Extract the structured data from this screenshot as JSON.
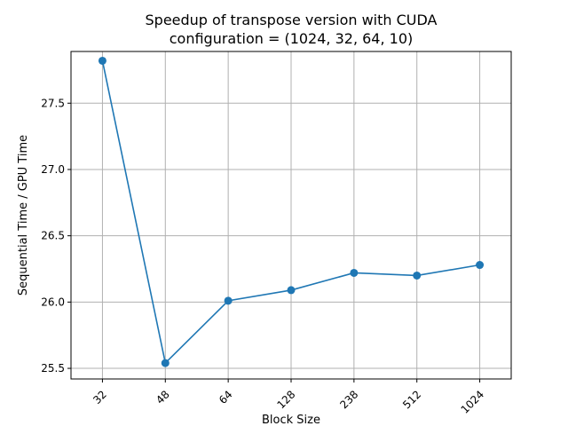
{
  "chart_data": {
    "type": "line",
    "title": "Speedup of transpose version with CUDA",
    "subtitle": "configuration = (1024, 32, 64, 10)",
    "xlabel": "Block Size",
    "ylabel": "Sequential Time / GPU Time",
    "categories": [
      "32",
      "48",
      "64",
      "128",
      "238",
      "512",
      "1024"
    ],
    "series": [
      {
        "values": [
          27.82,
          25.54,
          26.01,
          26.09,
          26.22,
          26.2,
          26.28
        ],
        "color": "#1f77b4",
        "marker": "circle"
      }
    ],
    "ylim": [
      25.42,
      27.89
    ],
    "yticks": [
      25.5,
      26.0,
      26.5,
      27.0,
      27.5
    ],
    "ytick_labels": [
      "25.5",
      "26.0",
      "26.5",
      "27.0",
      "27.5"
    ],
    "grid": true,
    "xtick_rotation": 45
  }
}
